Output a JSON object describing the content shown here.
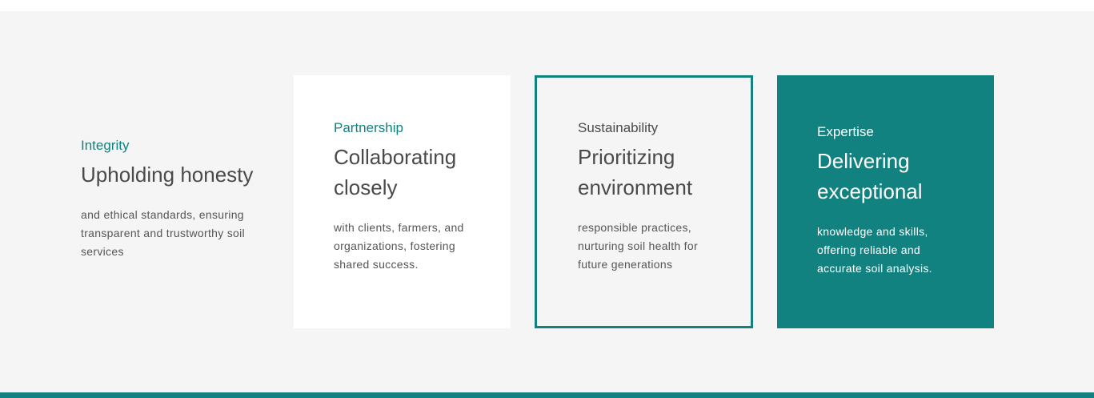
{
  "values": [
    {
      "eyebrow": "Integrity",
      "headline": "Upholding honesty",
      "body": "and ethical standards, ensuring transparent and trustworthy soil services"
    },
    {
      "eyebrow": "Partnership",
      "headline": "Collaborating closely",
      "body": "with clients, farmers, and organizations, fostering shared success."
    },
    {
      "eyebrow": "Sustainability",
      "headline": "Prioritizing environment",
      "body": "responsible practices, nurturing soil health for future generations"
    },
    {
      "eyebrow": "Expertise",
      "headline": "Delivering exceptional",
      "body": "knowledge and skills, offering reliable and accurate soil analysis."
    }
  ],
  "colors": {
    "accent": "#128280",
    "section_background": "#f5f5f5",
    "card_white": "#ffffff",
    "heading_text": "#4a4a4a",
    "body_text": "#555555"
  }
}
